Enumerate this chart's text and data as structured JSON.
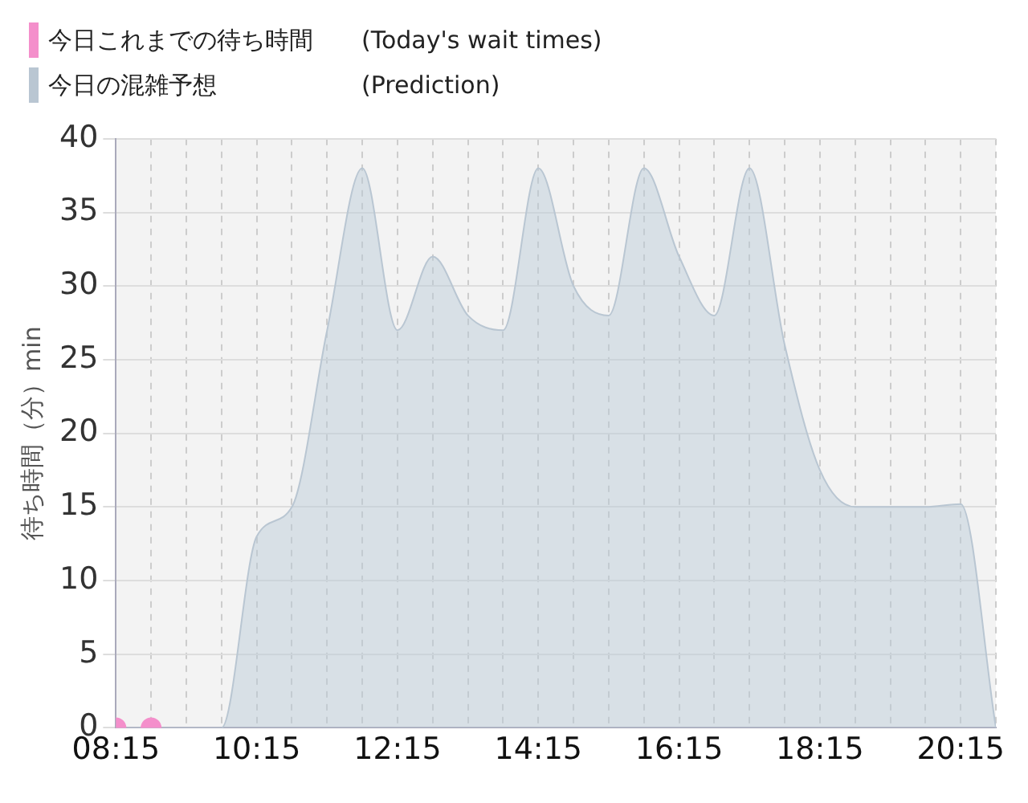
{
  "chart_data": {
    "type": "area",
    "ylabel": "待ち時間（分）min",
    "legend": "top left",
    "grid": true,
    "xlim": [
      8.25,
      20.75
    ],
    "xticks": [
      {
        "value": 8.25,
        "label": "08:15"
      },
      {
        "value": 8.75,
        "label": null
      },
      {
        "value": 9.25,
        "label": null
      },
      {
        "value": 9.75,
        "label": null
      },
      {
        "value": 10.25,
        "label": "10:15"
      },
      {
        "value": 10.75,
        "label": null
      },
      {
        "value": 11.25,
        "label": null
      },
      {
        "value": 11.75,
        "label": null
      },
      {
        "value": 12.25,
        "label": "12:15"
      },
      {
        "value": 12.75,
        "label": null
      },
      {
        "value": 13.25,
        "label": null
      },
      {
        "value": 13.75,
        "label": null
      },
      {
        "value": 14.25,
        "label": "14:15"
      },
      {
        "value": 14.75,
        "label": null
      },
      {
        "value": 15.25,
        "label": null
      },
      {
        "value": 15.75,
        "label": null
      },
      {
        "value": 16.25,
        "label": "16:15"
      },
      {
        "value": 16.75,
        "label": null
      },
      {
        "value": 17.25,
        "label": null
      },
      {
        "value": 17.75,
        "label": null
      },
      {
        "value": 18.25,
        "label": "18:15"
      },
      {
        "value": 18.75,
        "label": null
      },
      {
        "value": 19.25,
        "label": null
      },
      {
        "value": 19.75,
        "label": null
      },
      {
        "value": 20.25,
        "label": "20:15"
      },
      {
        "value": 20.75,
        "label": null
      }
    ],
    "ylim": [
      0,
      40
    ],
    "yticks": [
      0,
      5,
      10,
      15,
      20,
      25,
      30,
      35,
      40
    ],
    "series": [
      {
        "name": "今日これまでの待ち時間　　(Today's wait times)",
        "type": "scatter",
        "marker": "circle",
        "color": "#f48fcb",
        "x": [
          8.25,
          8.75
        ],
        "values": [
          0,
          0
        ]
      },
      {
        "name": "今日の混雑予想　　　　　　(Prediction)",
        "color": "#b9c6d2",
        "x": [
          8.25,
          8.75,
          9.25,
          9.75,
          10.25,
          10.75,
          11.25,
          11.75,
          12.25,
          12.75,
          13.25,
          13.75,
          14.25,
          14.75,
          15.25,
          15.75,
          16.25,
          16.75,
          17.25,
          17.75,
          18.25,
          18.75,
          19.25,
          19.75,
          20.25,
          20.75
        ],
        "values": [
          0,
          0,
          0,
          0,
          13,
          15,
          27,
          38,
          27,
          32,
          28,
          27,
          38,
          30,
          28,
          38,
          32,
          28,
          38,
          26,
          17.5,
          15,
          15,
          15,
          15.2,
          0
        ]
      }
    ]
  }
}
